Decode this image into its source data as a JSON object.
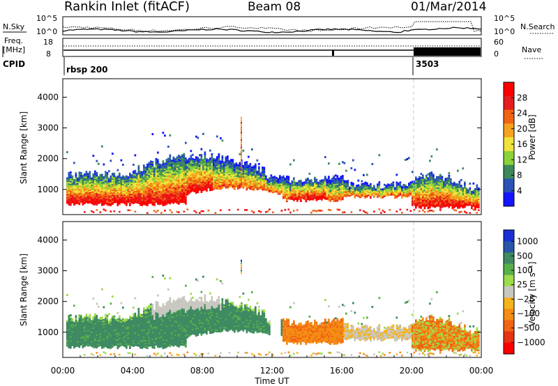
{
  "header": {
    "station": "Rankin Inlet (fitACF)",
    "beam": "Beam 08",
    "date": "01/Mar/2014"
  },
  "top_panels": {
    "nsky_label": "N.Sky",
    "nsearch_label": "N.Search",
    "noise_ticks_left": [
      "10^5",
      "10^0"
    ],
    "noise_ticks_right": [
      "10^5",
      "10^0"
    ],
    "freq_label_line1": "Freq.",
    "freq_label_line2": "[MHz]",
    "freq_ticks": [
      "18",
      "8"
    ],
    "nave_label": "Nave",
    "nave_ticks": [
      "60",
      "0"
    ],
    "cpid_label": "CPID",
    "cpid_entries": [
      {
        "label": "rbsp 200",
        "start_hour": 0.1
      },
      {
        "label": "3503",
        "start_hour": 20.0
      }
    ]
  },
  "colors": {
    "power_scale": [
      "#1414ff",
      "#2a52b8",
      "#3c8a5a",
      "#8bd23c",
      "#f0e33c",
      "#f5a21e",
      "#f06414",
      "#e61e1e",
      "#ff0000"
    ],
    "velocity_scale": [
      "#1a2fd6",
      "#2857a8",
      "#3f8a62",
      "#58b04a",
      "#9edc4a",
      "#c8c8c0",
      "#f5b41e",
      "#f58c14",
      "#f06414",
      "#e83214",
      "#ff0000"
    ],
    "dashed_marker": "#c8c8c8"
  },
  "chart_data": [
    {
      "type": "heatmap",
      "name": "power",
      "ylabel": "Slant Range [km]",
      "yticks": [
        "1000",
        "2000",
        "3000",
        "4000"
      ],
      "ylim": [
        180,
        4600
      ],
      "xlim": [
        0,
        24
      ],
      "colorbar_label": "Power [dB]",
      "colorbar_ticks": [
        "4",
        "8",
        "12",
        "16",
        "20",
        "24",
        "28"
      ],
      "colorbar_range": [
        0,
        32
      ],
      "marker_hour": 20.0
    },
    {
      "type": "heatmap",
      "name": "velocity",
      "ylabel": "Slant Range [km]",
      "yticks": [
        "1000",
        "2000",
        "3000",
        "4000"
      ],
      "ylim": [
        180,
        4600
      ],
      "xlim": [
        0,
        24
      ],
      "xticks": [
        "00:00",
        "04:00",
        "08:00",
        "12:00",
        "16:00",
        "20:00",
        "00:00"
      ],
      "xlabel": "Time UT",
      "colorbar_label": "Velocity [m s⁻¹]",
      "colorbar_ticks": [
        "1000",
        "500",
        "100",
        "25",
        "−25",
        "−100",
        "−500",
        "−1000"
      ],
      "marker_hour": 20.0
    }
  ]
}
